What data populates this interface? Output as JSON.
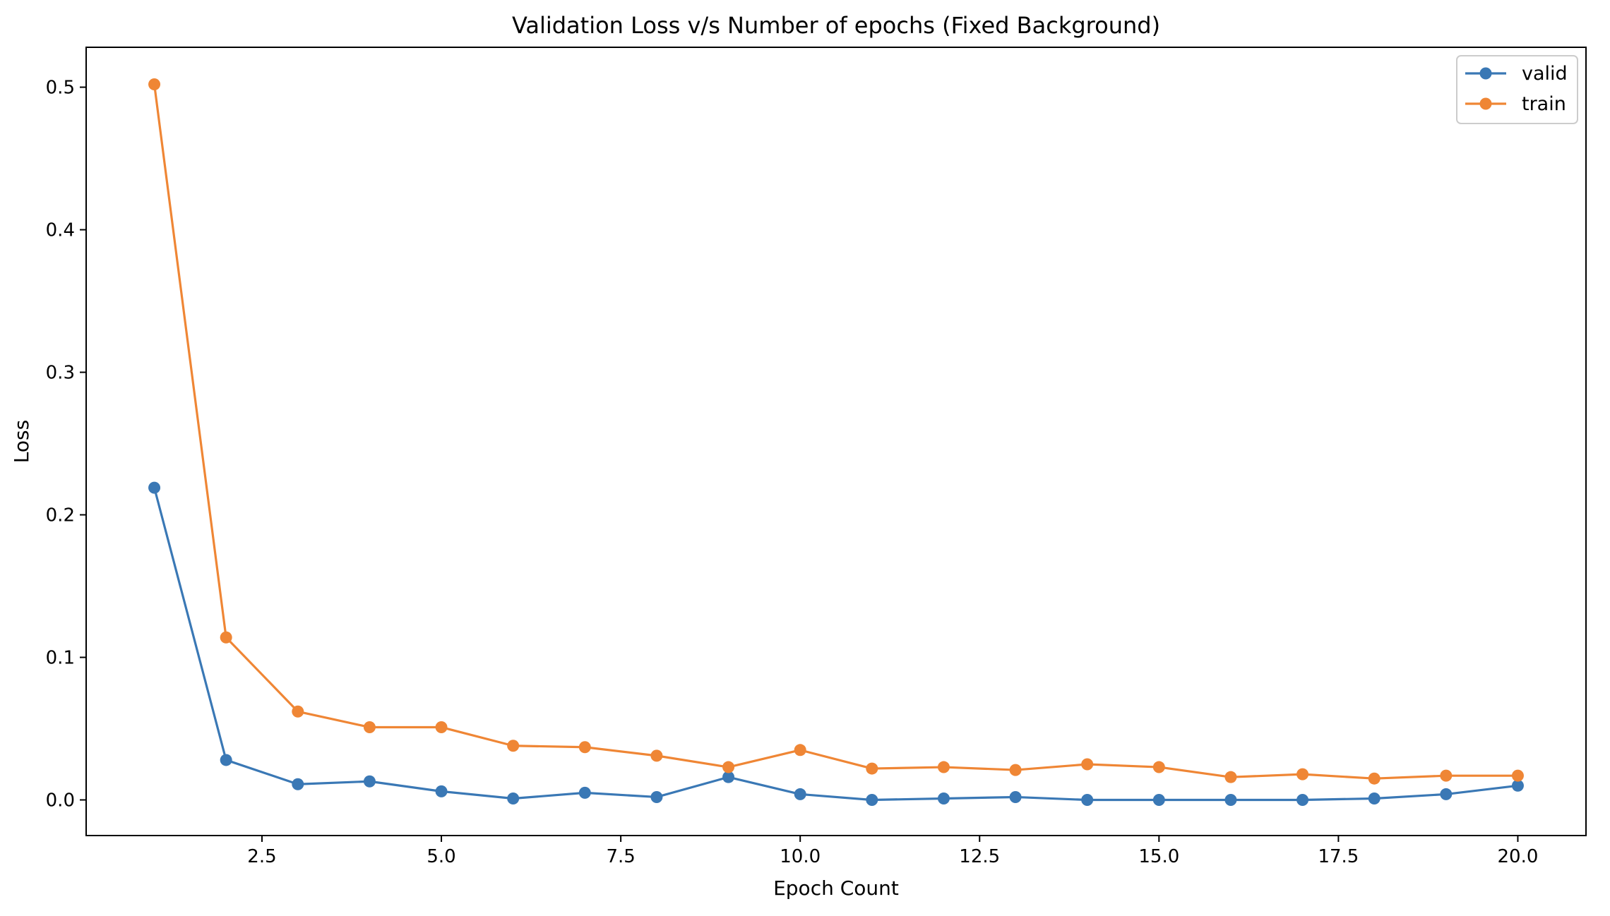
{
  "chart_data": {
    "type": "line",
    "title": "Validation Loss v/s Number of epochs (Fixed Background)",
    "xlabel": "Epoch Count",
    "ylabel": "Loss",
    "xlim": [
      0.05,
      20.95
    ],
    "ylim": [
      -0.025,
      0.528
    ],
    "xticks": [
      2.5,
      5.0,
      7.5,
      10.0,
      12.5,
      15.0,
      17.5,
      20.0
    ],
    "xtick_labels": [
      "2.5",
      "5.0",
      "7.5",
      "10.0",
      "12.5",
      "15.0",
      "17.5",
      "20.0"
    ],
    "yticks": [
      0.0,
      0.1,
      0.2,
      0.3,
      0.4,
      0.5
    ],
    "ytick_labels": [
      "0.0",
      "0.1",
      "0.2",
      "0.3",
      "0.4",
      "0.5"
    ],
    "grid": false,
    "legend_position": "top-right",
    "x": [
      1,
      2,
      3,
      4,
      5,
      6,
      7,
      8,
      9,
      10,
      11,
      12,
      13,
      14,
      15,
      16,
      17,
      18,
      19,
      20
    ],
    "series": [
      {
        "name": "valid",
        "color": "#3a78b5",
        "marker": "circle",
        "values": [
          0.219,
          0.028,
          0.011,
          0.013,
          0.006,
          0.001,
          0.005,
          0.002,
          0.016,
          0.004,
          0.0,
          0.001,
          0.002,
          0.0,
          0.0,
          0.0,
          0.0,
          0.001,
          0.004,
          0.01
        ]
      },
      {
        "name": "train",
        "color": "#ef8635",
        "marker": "circle",
        "values": [
          0.502,
          0.114,
          0.062,
          0.051,
          0.051,
          0.038,
          0.037,
          0.031,
          0.023,
          0.035,
          0.022,
          0.023,
          0.021,
          0.025,
          0.023,
          0.016,
          0.018,
          0.015,
          0.017,
          0.017
        ]
      }
    ]
  }
}
